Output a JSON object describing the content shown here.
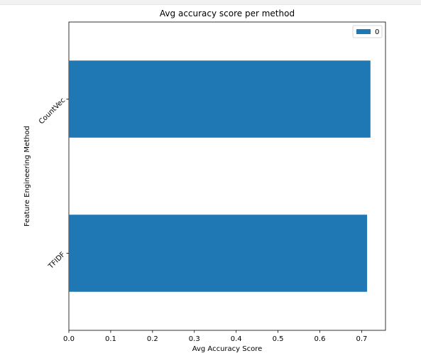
{
  "chart_data": {
    "type": "bar",
    "orientation": "horizontal",
    "title": "Avg accuracy score per method",
    "xlabel": "Avg Accuracy Score",
    "ylabel": "Feature Engineering Method",
    "categories": [
      "TFIDF",
      "CountVec"
    ],
    "series": [
      {
        "name": "0",
        "values": [
          0.713,
          0.721
        ],
        "color": "#1f77b4"
      }
    ],
    "xlim": [
      0,
      0.757
    ],
    "xticks": [
      0.0,
      0.1,
      0.2,
      0.3,
      0.4,
      0.5,
      0.6,
      0.7
    ],
    "xtick_labels": [
      "0.0",
      "0.1",
      "0.2",
      "0.3",
      "0.4",
      "0.5",
      "0.6",
      "0.7"
    ],
    "grid": false,
    "legend": {
      "placement": "top-right",
      "entries": [
        "0"
      ]
    }
  }
}
